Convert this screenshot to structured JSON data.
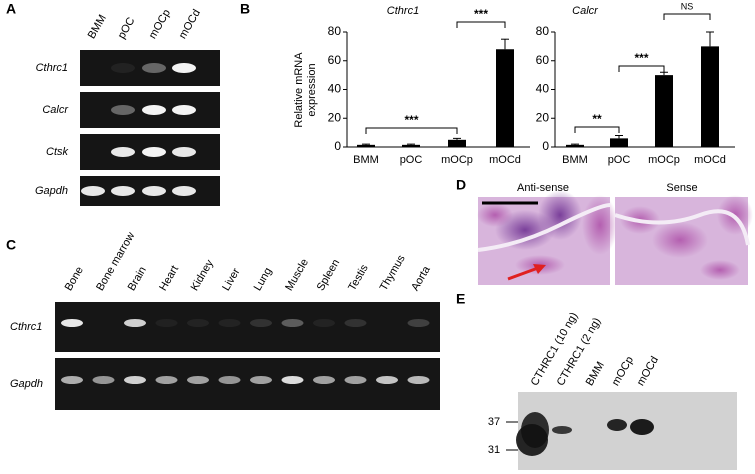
{
  "panel_labels": [
    "A",
    "B",
    "C",
    "D",
    "E"
  ],
  "panel_a": {
    "lanes": [
      "BMM",
      "pOC",
      "mOCp",
      "mOCd"
    ],
    "rows": [
      "Cthrc1",
      "Calcr",
      "Ctsk",
      "Gapdh"
    ]
  },
  "chart_data": [
    {
      "type": "bar",
      "title": "Cthrc1",
      "ylabel": [
        "Relative mRNA",
        "expression"
      ],
      "categories": [
        "BMM",
        "pOC",
        "mOCp",
        "mOCd"
      ],
      "values": [
        1.5,
        1.5,
        5,
        68
      ],
      "errors": [
        0.5,
        0.5,
        1,
        7
      ],
      "color": "#000000",
      "ylim": [
        0,
        80
      ],
      "yticks": [
        0,
        20,
        40,
        60,
        80
      ],
      "annotations": [
        "***",
        "***"
      ]
    },
    {
      "type": "bar",
      "title": "Calcr",
      "categories": [
        "BMM",
        "pOC",
        "mOCp",
        "mOCd"
      ],
      "values": [
        1.5,
        6,
        50,
        70
      ],
      "errors": [
        0.5,
        2,
        2,
        10
      ],
      "color": "#000000",
      "ylim": [
        0,
        80
      ],
      "yticks": [
        0,
        20,
        40,
        60,
        80
      ],
      "annotations": [
        "**",
        "***",
        "NS"
      ]
    }
  ],
  "panel_c": {
    "lanes": [
      "Bone",
      "Bone marrow",
      "Brain",
      "Heart",
      "Kidney",
      "Liver",
      "Lung",
      "Muscle",
      "Spleen",
      "Testis",
      "Thymus",
      "Aorta"
    ],
    "rows": [
      "Cthrc1",
      "Gapdh"
    ]
  },
  "panel_d": {
    "images": [
      "Anti-sense",
      "Sense"
    ]
  },
  "panel_e": {
    "lanes": [
      "CTHRC1 (10 ng)",
      "CTHRC1 (2 ng)",
      "BMM",
      "mOCp",
      "mOCd"
    ],
    "markers": [
      "37",
      "31"
    ]
  }
}
